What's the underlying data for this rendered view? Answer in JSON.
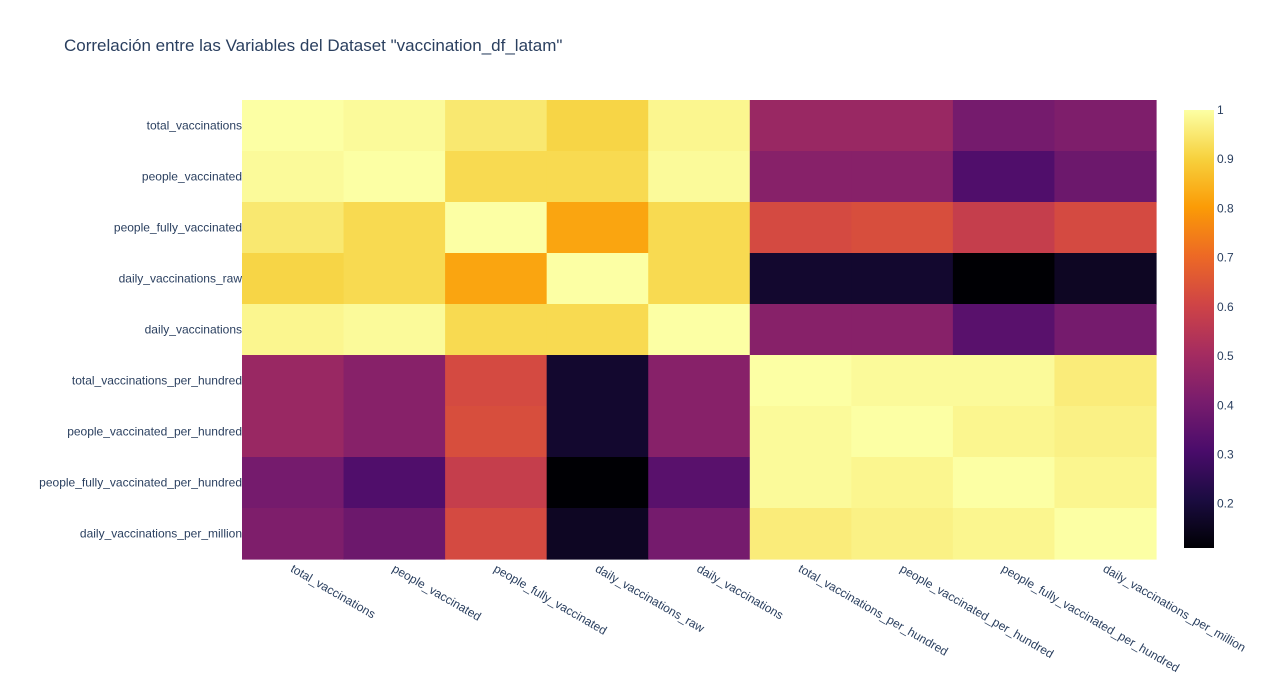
{
  "chart_data": {
    "type": "heatmap",
    "title": "Correlación entre las Variables del Dataset \"vaccination_df_latam\"",
    "x": [
      "total_vaccinations",
      "people_vaccinated",
      "people_fully_vaccinated",
      "daily_vaccinations_raw",
      "daily_vaccinations",
      "total_vaccinations_per_hundred",
      "people_vaccinated_per_hundred",
      "people_fully_vaccinated_per_hundred",
      "daily_vaccinations_per_million"
    ],
    "y": [
      "total_vaccinations",
      "people_vaccinated",
      "people_fully_vaccinated",
      "daily_vaccinations_raw",
      "daily_vaccinations",
      "total_vaccinations_per_hundred",
      "people_vaccinated_per_hundred",
      "people_fully_vaccinated_per_hundred",
      "daily_vaccinations_per_million"
    ],
    "z": [
      [
        1.0,
        0.99,
        0.95,
        0.91,
        0.98,
        0.48,
        0.48,
        0.4,
        0.42
      ],
      [
        0.99,
        1.0,
        0.92,
        0.92,
        0.99,
        0.44,
        0.44,
        0.32,
        0.38
      ],
      [
        0.95,
        0.92,
        1.0,
        0.82,
        0.92,
        0.62,
        0.63,
        0.58,
        0.62
      ],
      [
        0.91,
        0.92,
        0.82,
        1.0,
        0.92,
        0.18,
        0.18,
        0.11,
        0.16
      ],
      [
        0.98,
        0.99,
        0.92,
        0.92,
        1.0,
        0.44,
        0.44,
        0.34,
        0.4
      ],
      [
        0.48,
        0.44,
        0.62,
        0.18,
        0.44,
        1.0,
        0.99,
        0.99,
        0.96
      ],
      [
        0.48,
        0.44,
        0.63,
        0.18,
        0.44,
        0.99,
        1.0,
        0.98,
        0.97
      ],
      [
        0.4,
        0.32,
        0.58,
        0.11,
        0.34,
        0.99,
        0.98,
        1.0,
        0.98
      ],
      [
        0.42,
        0.38,
        0.62,
        0.16,
        0.4,
        0.96,
        0.97,
        0.98,
        1.0
      ]
    ],
    "zrange": [
      0.11,
      1.0
    ],
    "colorscale": "inferno",
    "colorbar_ticks": [
      "0.2",
      "0.3",
      "0.4",
      "0.5",
      "0.6",
      "0.7",
      "0.8",
      "0.9",
      "1"
    ],
    "colorbar_tick_values": [
      0.2,
      0.3,
      0.4,
      0.5,
      0.6,
      0.7,
      0.8,
      0.9,
      1.0
    ],
    "text_color": "#2a3f5f"
  }
}
